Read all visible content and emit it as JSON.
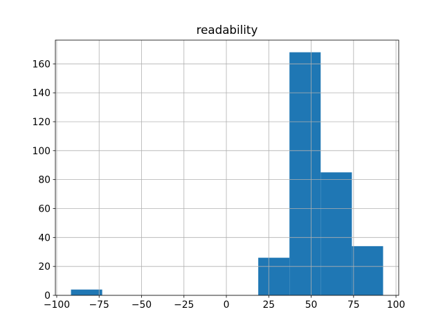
{
  "chart_data": {
    "type": "histogram",
    "title": "readability",
    "bins": [
      -91.6,
      -73.2,
      -54.8,
      -36.4,
      -18.0,
      0.4,
      18.8,
      37.2,
      55.6,
      74.0,
      92.4
    ],
    "values": [
      4,
      0,
      0,
      0,
      0,
      0,
      26,
      168,
      85,
      34
    ],
    "color": "#1f77b4",
    "xlim": [
      -100.8,
      101.6
    ],
    "xticks": [
      {
        "value": -100,
        "label": "−100"
      },
      {
        "value": -75,
        "label": "−75"
      },
      {
        "value": -50,
        "label": "−50"
      },
      {
        "value": -25,
        "label": "−25"
      },
      0,
      25,
      50,
      75,
      100
    ],
    "ylim": [
      0,
      176.4
    ],
    "yticks": [
      0,
      20,
      40,
      60,
      80,
      100,
      120,
      140,
      160
    ],
    "grid": true
  }
}
